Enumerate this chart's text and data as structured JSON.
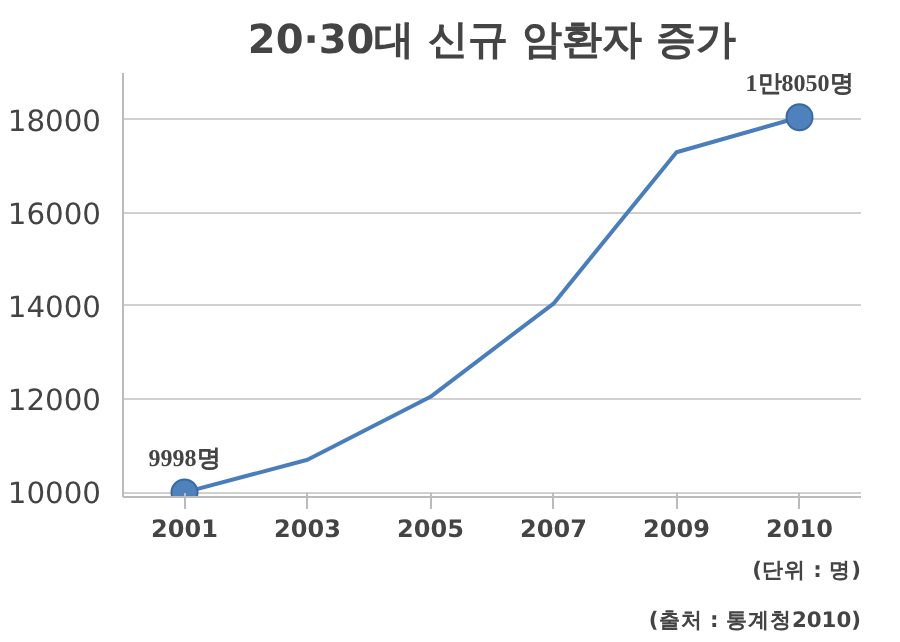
{
  "chart_data": {
    "type": "line",
    "title": "20·30대 신규 암환자 증가",
    "categories": [
      "2001",
      "2003",
      "2005",
      "2007",
      "2009",
      "2010"
    ],
    "series": [
      {
        "color": "#4a7ebb",
        "values": [
          9998,
          10700,
          12050,
          14050,
          17300,
          18050
        ]
      },
      {
        "type": "scatter",
        "marker": "circle",
        "color": "#4f81bd",
        "values": [
          9998,
          null,
          null,
          null,
          null,
          18050
        ],
        "value_labels": [
          "9998명",
          null,
          null,
          null,
          null,
          "1만8050명"
        ]
      }
    ],
    "ylim": [
      9900,
      19000
    ],
    "yticks": [
      10000,
      12000,
      14000,
      16000,
      18000
    ],
    "grid": "y",
    "line_style": "solid",
    "annotations": [
      "(단위 : 명)",
      "(출처 : 통계청2010)"
    ]
  }
}
